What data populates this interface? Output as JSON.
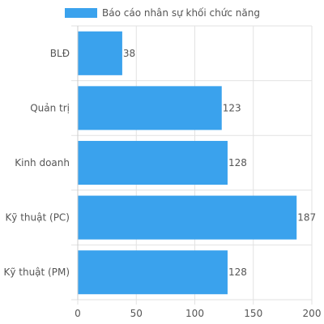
{
  "chart_data": {
    "type": "bar",
    "orientation": "horizontal",
    "categories": [
      "BLĐ",
      "Quản trị",
      "Kinh doanh",
      "Kỹ thuật (PC)",
      "Kỹ thuật (PM)"
    ],
    "series": [
      {
        "name": "Báo cáo nhân sự khối chức năng",
        "values": [
          38,
          123,
          128,
          187,
          128
        ],
        "color": "#3aa2ed"
      }
    ],
    "data_labels": [
      "38",
      "123",
      "128",
      "187",
      "128"
    ],
    "xlim": [
      0,
      200
    ],
    "x_ticks": [
      0,
      50,
      100,
      150,
      200
    ],
    "x_tick_labels": [
      "0",
      "50",
      "100",
      "150",
      "200"
    ],
    "grid": true,
    "legend_position": "top-left",
    "title": "",
    "xlabel": "",
    "ylabel": ""
  }
}
